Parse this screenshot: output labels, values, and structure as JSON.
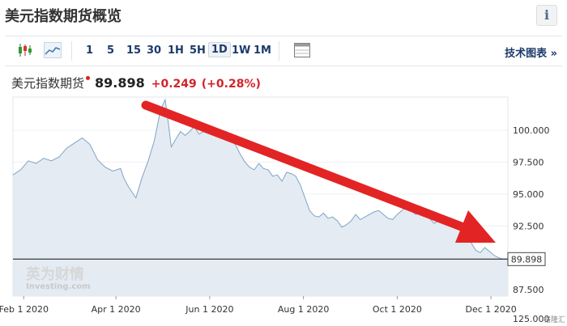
{
  "header": {
    "title": "美元指数期货概览",
    "info_glyph": "i"
  },
  "toolbar": {
    "icons": [
      "candlestick-icon",
      "area-chart-icon",
      "table-icon"
    ],
    "timeframes": [
      "1",
      "5",
      "15",
      "30",
      "1H",
      "5H",
      "1D",
      "1W",
      "1M"
    ],
    "active_timeframe": "1D",
    "tech_chart_label": "技术图表 »"
  },
  "quote": {
    "name": "美元指数期货",
    "price": "89.898",
    "change": "+0.249",
    "change_pct": "(+0.28%)"
  },
  "watermark": {
    "cn": "英为财情",
    "en": "Investing.com"
  },
  "corner_watermark": "格隆汇",
  "colors": {
    "area_fill": "#e4ebf3",
    "line": "#7fa3c7",
    "arrow": "#e32424",
    "change": "#d1242a",
    "link": "#1d3b6a"
  },
  "chart_data": {
    "type": "area",
    "title": "",
    "xlabel": "",
    "ylabel": "",
    "ylim": [
      87.0,
      102.6
    ],
    "y_ticks": [
      "100.000",
      "97.500",
      "95.000",
      "92.500",
      "87.500"
    ],
    "y_bottom_label": "125.000",
    "x_ticks": [
      "Feb 1 2020",
      "Apr 1 2020",
      "Jun 1 2020",
      "Aug 1 2020",
      "Oct 1 2020",
      "Dec 1 2020"
    ],
    "last_value_label": "89.898",
    "series": [
      {
        "values": [
          [
            0,
            96.5
          ],
          [
            5,
            96.9
          ],
          [
            10,
            97.6
          ],
          [
            15,
            97.4
          ],
          [
            20,
            97.8
          ],
          [
            25,
            97.6
          ],
          [
            30,
            97.9
          ],
          [
            35,
            98.6
          ],
          [
            40,
            99.0
          ],
          [
            45,
            99.4
          ],
          [
            50,
            98.9
          ],
          [
            55,
            97.7
          ],
          [
            60,
            97.1
          ],
          [
            65,
            96.8
          ],
          [
            70,
            97.0
          ],
          [
            72,
            96.3
          ],
          [
            75,
            95.6
          ],
          [
            80,
            94.7
          ],
          [
            84,
            96.3
          ],
          [
            88,
            97.6
          ],
          [
            92,
            99.2
          ],
          [
            96,
            101.6
          ],
          [
            99,
            102.4
          ],
          [
            101,
            100.7
          ],
          [
            103,
            98.7
          ],
          [
            106,
            99.3
          ],
          [
            109,
            99.9
          ],
          [
            112,
            99.6
          ],
          [
            115,
            99.9
          ],
          [
            118,
            100.3
          ],
          [
            121,
            99.7
          ],
          [
            124,
            99.9
          ],
          [
            127,
            100.2
          ],
          [
            130,
            99.8
          ],
          [
            133,
            100.0
          ],
          [
            136,
            99.6
          ],
          [
            139,
            99.9
          ],
          [
            142,
            99.4
          ],
          [
            145,
            98.8
          ],
          [
            148,
            98.1
          ],
          [
            151,
            97.5
          ],
          [
            154,
            97.1
          ],
          [
            157,
            96.9
          ],
          [
            160,
            97.4
          ],
          [
            163,
            97.0
          ],
          [
            166,
            96.9
          ],
          [
            169,
            96.4
          ],
          [
            172,
            96.5
          ],
          [
            175,
            96.0
          ],
          [
            178,
            96.7
          ],
          [
            181,
            96.6
          ],
          [
            184,
            96.4
          ],
          [
            187,
            95.7
          ],
          [
            190,
            94.7
          ],
          [
            193,
            93.7
          ],
          [
            196,
            93.3
          ],
          [
            199,
            93.2
          ],
          [
            202,
            93.5
          ],
          [
            205,
            93.1
          ],
          [
            208,
            93.2
          ],
          [
            211,
            92.9
          ],
          [
            214,
            92.4
          ],
          [
            217,
            92.6
          ],
          [
            220,
            92.9
          ],
          [
            223,
            93.4
          ],
          [
            226,
            93.0
          ],
          [
            229,
            93.2
          ],
          [
            232,
            93.4
          ],
          [
            235,
            93.6
          ],
          [
            238,
            93.7
          ],
          [
            241,
            93.4
          ],
          [
            244,
            93.1
          ],
          [
            247,
            93.0
          ],
          [
            250,
            93.4
          ],
          [
            253,
            93.7
          ],
          [
            256,
            94.0
          ],
          [
            259,
            93.7
          ],
          [
            262,
            93.4
          ],
          [
            265,
            93.5
          ],
          [
            268,
            93.3
          ],
          [
            271,
            93.1
          ],
          [
            274,
            92.7
          ],
          [
            277,
            92.9
          ],
          [
            280,
            93.1
          ],
          [
            283,
            92.7
          ],
          [
            286,
            92.6
          ],
          [
            289,
            92.4
          ],
          [
            292,
            92.2
          ],
          [
            295,
            91.5
          ],
          [
            298,
            91.2
          ],
          [
            301,
            90.6
          ],
          [
            304,
            90.4
          ],
          [
            307,
            90.8
          ],
          [
            310,
            90.5
          ],
          [
            313,
            90.2
          ],
          [
            316,
            90.0
          ],
          [
            319,
            89.9
          ],
          [
            322,
            89.9
          ]
        ]
      }
    ],
    "x_domain": [
      0,
      322
    ],
    "x_tick_positions": [
      7,
      67,
      128,
      189,
      250,
      311
    ],
    "annotation": "red arrow pointing down-right (downtrend)"
  }
}
